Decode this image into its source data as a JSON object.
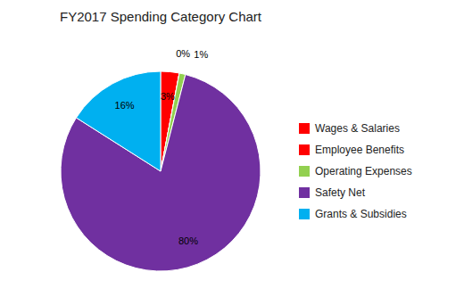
{
  "chart_data": {
    "type": "pie",
    "title": "FY2017 Spending Category Chart",
    "categories": [
      "Wages & Salaries",
      "Employee Benefits",
      "Operating Expenses",
      "Safety Net",
      "Grants & Subsidies"
    ],
    "values": [
      3,
      0,
      1,
      80,
      16
    ],
    "value_labels": [
      "3%",
      "0%",
      "1%",
      "80%",
      "16%"
    ],
    "colors": [
      "#FF0000",
      "#FF0000",
      "#92D050",
      "#7030A0",
      "#00B0F0"
    ],
    "data_labels": true,
    "legend": "right"
  }
}
